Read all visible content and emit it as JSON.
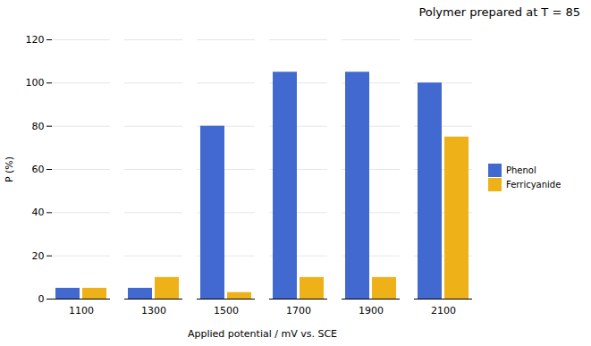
{
  "chart_data": {
    "type": "bar",
    "annotation": "Polymer prepared at T = 85",
    "xlabel": "Applied potential / mV vs. SCE",
    "ylabel": "P (%)",
    "categories": [
      "1100",
      "1300",
      "1500",
      "1700",
      "1900",
      "2100"
    ],
    "series": [
      {
        "name": "Phenol",
        "values": [
          5,
          5,
          80,
          105,
          105,
          100
        ]
      },
      {
        "name": "Ferricyanide",
        "values": [
          5,
          10,
          3,
          10,
          10,
          75
        ]
      }
    ],
    "ylim": [
      0,
      120
    ],
    "yticks": [
      0,
      20,
      40,
      60,
      80,
      100,
      120
    ],
    "grid": true,
    "legend": "right"
  }
}
